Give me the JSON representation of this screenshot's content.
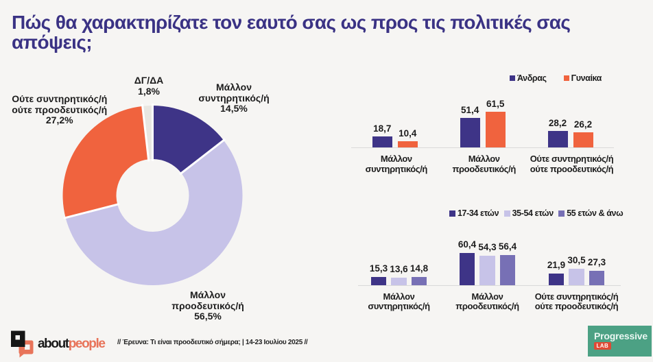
{
  "page": {
    "background": "#F6F5F3"
  },
  "title": {
    "text": "Πώς θα χαρακτηρίζατε τον εαυτό σας ως προς τις πολιτικές σας απόψεις;",
    "color": "#3A3284"
  },
  "colors": {
    "indigo": "#3E3487",
    "lavender": "#C7C3E8",
    "midpurple": "#7770B5",
    "orange": "#F0633E",
    "gray": "#E8E6E1",
    "axis": "#D9D9D9",
    "text": "#1C1C1C"
  },
  "chart_data": [
    {
      "type": "pie",
      "subtype": "donut",
      "unit": "%",
      "legend_position": "none",
      "slices": [
        {
          "label": "Μάλλον συντηρητικός/ή",
          "label_lines": [
            "Μάλλον",
            "συντηρητικός/ή"
          ],
          "value": 14.5,
          "display": "14,5%",
          "color": "indigo"
        },
        {
          "label": "Μάλλον προοδευτικός/ή",
          "label_lines": [
            "Μάλλον",
            "προοδευτικός/ή"
          ],
          "value": 56.5,
          "display": "56,5%",
          "color": "lavender"
        },
        {
          "label": "Ούτε συντηρητικός/ή ούτε προοδευτικός/ή",
          "label_lines": [
            "Ούτε συντηρητικός/ή",
            "ούτε προοδευτικός/ή"
          ],
          "value": 27.2,
          "display": "27,2%",
          "color": "orange"
        },
        {
          "label": "ΔΓ/ΔΑ",
          "label_lines": [
            "ΔΓ/ΔΑ"
          ],
          "value": 1.8,
          "display": "1,8%",
          "color": "gray"
        }
      ]
    },
    {
      "type": "bar",
      "group": "gender",
      "categories": [
        "Μάλλον συντηρητικός/ή",
        "Μάλλον προοδευτικός/ή",
        "Ούτε συντηρητικός/ή ούτε προοδευτικός/ή"
      ],
      "categories_lines": [
        [
          "Μάλλον",
          "συντηρητικός/ή"
        ],
        [
          "Μάλλον",
          "προοδευτικός/ή"
        ],
        [
          "Ούτε συντηρητικός/ή",
          "ούτε προοδευτικός/ή"
        ]
      ],
      "series": [
        {
          "name": "Άνδρας",
          "color": "indigo",
          "values": [
            18.7,
            51.4,
            28.2
          ],
          "displays": [
            "18,7",
            "51,4",
            "28,2"
          ]
        },
        {
          "name": "Γυναίκα",
          "color": "orange",
          "values": [
            10.4,
            61.5,
            26.2
          ],
          "displays": [
            "10,4",
            "61,5",
            "26,2"
          ]
        }
      ],
      "ylim": [
        0,
        70
      ],
      "grid": false,
      "value_labels": true,
      "legend_position": "top"
    },
    {
      "type": "bar",
      "group": "age",
      "categories": [
        "Μάλλον συντηρητικός/ή",
        "Μάλλον προοδευτικός/ή",
        "Ούτε συντηρητικός/ή ούτε προοδευτικός/ή"
      ],
      "categories_lines": [
        [
          "Μάλλον",
          "συντηρητικός/ή"
        ],
        [
          "Μάλλον",
          "προοδευτικός/ή"
        ],
        [
          "Ούτε συντηρητικός/ή",
          "ούτε προοδευτικός/ή"
        ]
      ],
      "series": [
        {
          "name": "17-34 ετών",
          "color": "indigo",
          "values": [
            15.3,
            60.4,
            21.9
          ],
          "displays": [
            "15,3",
            "60,4",
            "21,9"
          ]
        },
        {
          "name": "35-54 ετών",
          "color": "lavender",
          "values": [
            13.6,
            54.3,
            30.5
          ],
          "displays": [
            "13,6",
            "54,3",
            "30,5"
          ]
        },
        {
          "name": "55 ετών & άνω",
          "color": "midpurple",
          "values": [
            14.8,
            56.4,
            27.3
          ],
          "displays": [
            "14,8",
            "56,4",
            "27,3"
          ]
        }
      ],
      "ylim": [
        0,
        70
      ],
      "grid": false,
      "value_labels": true,
      "legend_position": "top"
    }
  ],
  "footer": {
    "brand": {
      "black_part": "about",
      "orange_part": "people",
      "orange_color": "#E8745A",
      "black_color": "#1A1A1A"
    },
    "research_note": "// Έρευνα: Τι είναι προοδευτικό σήμερα; | 14-23 Ιουλίου 2025 //",
    "progressive": {
      "name": "Progressive",
      "badge": "LAB",
      "bg": "#4CA184",
      "badge_bg": "#DF4A35",
      "name_color": "#EAF7F2"
    }
  }
}
